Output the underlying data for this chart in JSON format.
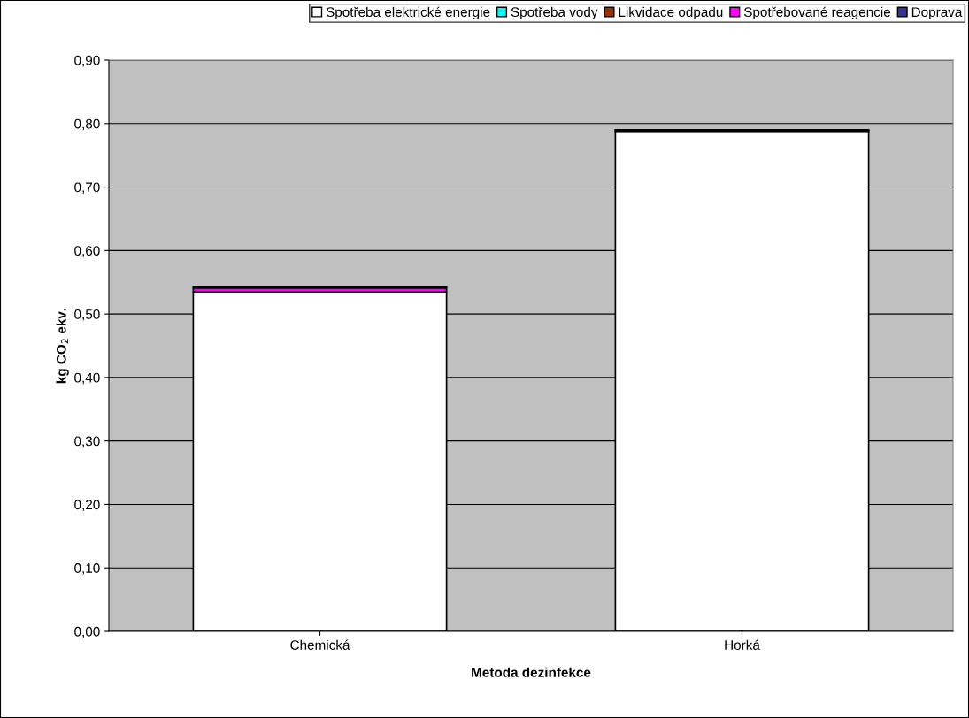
{
  "chart_data": {
    "type": "bar",
    "stacked": true,
    "xlabel": "Metoda dezinfekce",
    "ylabel": "kg CO$_{2}$ ekv.",
    "categories": [
      "Chemická",
      "Horká"
    ],
    "series": [
      {
        "name": "Spotřeba elektrické energie",
        "color": "#ffffff",
        "values": [
          0.535,
          0.788
        ]
      },
      {
        "name": "Spotřeba vody",
        "color": "#00ffff",
        "values": [
          null,
          null
        ]
      },
      {
        "name": "Likvidace odpadu",
        "color": "#993300",
        "values": [
          null,
          0.001
        ]
      },
      {
        "name": "Spotřebované reagencie",
        "color": "#ff00ff",
        "values": [
          0.006,
          0.0
        ]
      },
      {
        "name": "Doprava",
        "color": "#333399",
        "values": [
          0.002,
          0.001
        ]
      }
    ],
    "ylim": [
      0,
      0.9
    ],
    "yticks": [
      {
        "value": 0,
        "label": "0,00"
      },
      {
        "value": 0.1,
        "label": "0,10"
      },
      {
        "value": 0.2,
        "label": "0,20"
      },
      {
        "value": 0.3,
        "label": "0,30"
      },
      {
        "value": 0.4,
        "label": "0,40"
      },
      {
        "value": 0.5,
        "label": "0,50"
      },
      {
        "value": 0.6,
        "label": "0,60"
      },
      {
        "value": 0.7,
        "label": "0,70"
      },
      {
        "value": 0.8,
        "label": "0,80"
      },
      {
        "value": 0.9,
        "label": "0,90"
      }
    ],
    "grid": "y",
    "legend": "top"
  }
}
